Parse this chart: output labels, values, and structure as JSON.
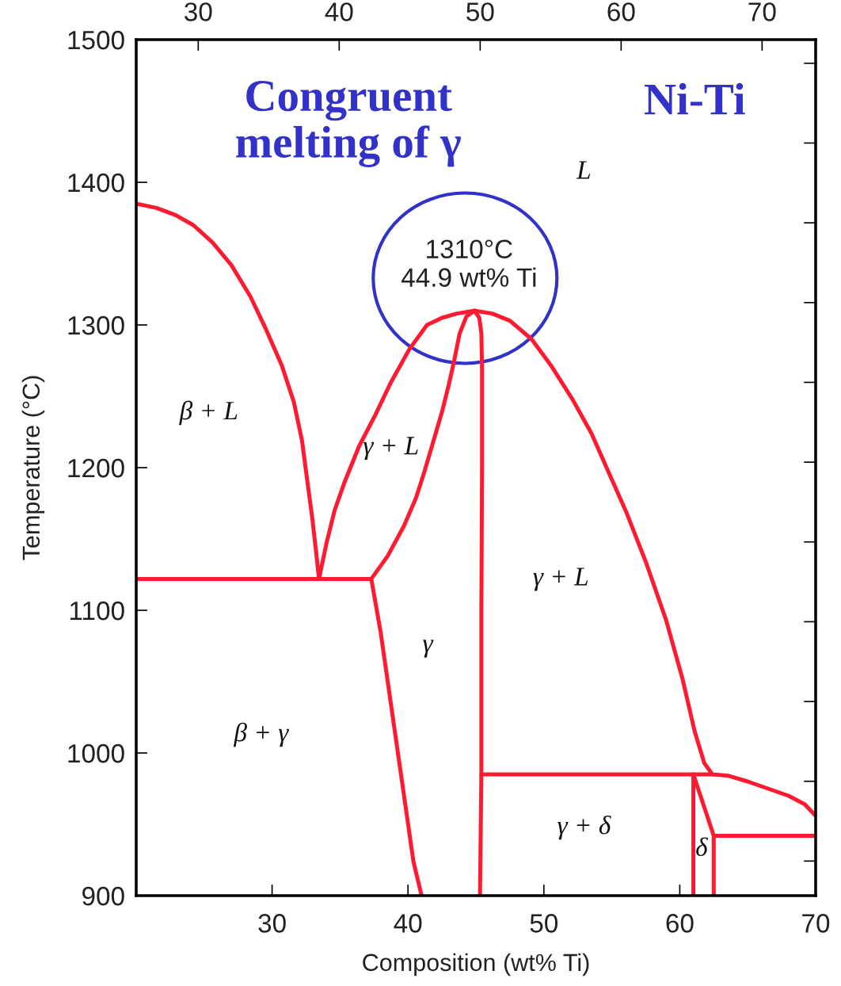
{
  "chart_data": {
    "type": "line",
    "title": "Ni-Ti",
    "xlabel": "Composition (wt% Ti)",
    "ylabel": "Temperature (°C)",
    "xlim": [
      20,
      70
    ],
    "xticks": [
      30,
      40,
      50,
      60,
      70
    ],
    "ylim": [
      900,
      1500
    ],
    "yticks": [
      900,
      1000,
      1100,
      1200,
      1300,
      1400,
      1500
    ],
    "x2lim": [
      25.6,
      73.8
    ],
    "x2ticks": [
      30,
      40,
      50,
      60,
      70
    ],
    "annotations": [
      {
        "text": "1310°C\n44.9 wt% Ti",
        "x": 44.9,
        "y": 1310
      },
      "Congruent\nmelting of γ",
      "β + L",
      "γ + L",
      "L",
      "γ",
      "β + γ",
      "γ + L",
      "γ + δ",
      "δ"
    ],
    "series": [
      {
        "color": "#fe1a30",
        "x": [
          20,
          21.5,
          22.9,
          24.2,
          25.6,
          27.0,
          28.4,
          29.5,
          30.7,
          31.6,
          32.2,
          32.6,
          32.95,
          33.25,
          33.45,
          34.0,
          34.6,
          35.3,
          36.4,
          37.6,
          38.7,
          40.1,
          41.4,
          42.5,
          43.6,
          44.9,
          46.2,
          47.5,
          49.1,
          50.5,
          52.1,
          53.5,
          54.8,
          56.1,
          57.5,
          59.0,
          60.2,
          61.1,
          61.8,
          62.4,
          63.6,
          65.0,
          66.5,
          68.0,
          69.2,
          70
        ],
        "values": [
          1385,
          1382,
          1377,
          1370,
          1358,
          1342,
          1320,
          1298,
          1272,
          1246,
          1219,
          1190,
          1165,
          1140,
          1122,
          1147,
          1170,
          1189,
          1215,
          1237,
          1259,
          1283,
          1300,
          1305,
          1308,
          1310,
          1308,
          1303,
          1290,
          1272,
          1248,
          1224,
          1196,
          1168,
          1134,
          1093,
          1052,
          1015,
          993,
          985,
          984,
          980,
          975,
          970,
          964,
          956
        ]
      },
      {
        "color": "#fe1a30",
        "x": [
          41.0,
          40.4,
          39.2,
          38.0,
          37.3,
          38.5,
          39.7,
          40.6,
          41.2,
          41.7,
          42.5,
          43.0,
          43.4,
          43.8,
          44.3,
          44.9,
          45.25,
          45.4,
          45.45,
          45.45,
          45.4,
          45.4,
          45.3
        ],
        "values": [
          900,
          924,
          1004,
          1084,
          1122,
          1138,
          1159,
          1179,
          1197,
          1213,
          1239,
          1258,
          1275,
          1294,
          1306,
          1310,
          1305,
          1294,
          1270,
          1200,
          1100,
          985,
          900
        ]
      },
      {
        "color": "#fe1a30",
        "x": [
          20,
          37.3
        ],
        "values": [
          1122,
          1122
        ]
      },
      {
        "color": "#fe1a30",
        "x": [
          45.4,
          62.4
        ],
        "values": [
          985,
          985
        ]
      },
      {
        "color": "#fe1a30",
        "x": [
          61.0,
          61.0
        ],
        "values": [
          985,
          900
        ]
      },
      {
        "color": "#fe1a30",
        "x": [
          61.0,
          62.5,
          62.5
        ],
        "values": [
          985,
          942,
          900
        ]
      },
      {
        "color": "#fe1a30",
        "x": [
          62.5,
          70
        ],
        "values": [
          942,
          942
        ]
      }
    ]
  }
}
